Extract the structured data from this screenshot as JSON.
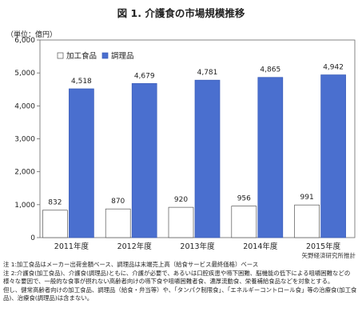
{
  "title": "図 1. 介護食の市場規模推移",
  "unit_label": "（単位：億円）",
  "credit": "矢野経済研究所推計",
  "notes": [
    "注 1:加工食品はメーカー出荷金額ベース、調理品は末端売上高（給食サービス最終価格）ベース",
    "注 2:介護食(加工食品)、介護食(調理品)ともに、介護が必要で、あるいは口腔疾患や嚥下困難、脳機能の低下による咀嚼困難などの様々な要因で、一般的な食事が摂れない高齢者向けの嚥下食や咀嚼困難者食、濃厚流動食、栄養補給食品などを対象とする。",
    "但し、健常高齢者向けの加工食品、調理品（給食・弁当等）や、「タンパク制限食」、「エネルギーコントロール食」等の治療食(加工食品)、治療食(調理品)は含まない。"
  ],
  "chart_data": {
    "type": "bar",
    "categories": [
      "2011年度",
      "2012年度",
      "2013年度",
      "2014年度",
      "2015年度"
    ],
    "series": [
      {
        "name": "加工食品",
        "values": [
          832,
          870,
          920,
          956,
          991
        ],
        "color": "#ffffff"
      },
      {
        "name": "調理品",
        "values": [
          4518,
          4679,
          4781,
          4865,
          4942
        ],
        "color": "#4a6fcf"
      }
    ],
    "ylim": [
      0,
      6000
    ],
    "yticks": [
      "0",
      "1,000",
      "2,000",
      "3,000",
      "4,000",
      "5,000",
      "6,000"
    ],
    "grid": false,
    "legend": "top-left"
  }
}
